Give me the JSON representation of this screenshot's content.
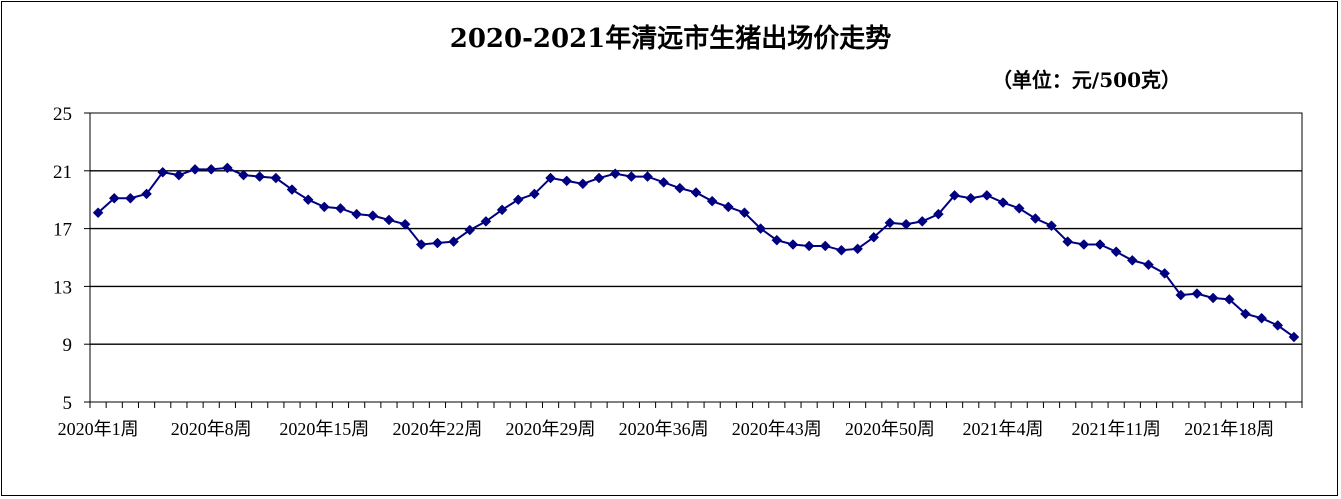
{
  "chart_data": {
    "type": "line",
    "title": "2020-2021年清远市生猪出场价走势",
    "unit_label": "（单位：元/500克）",
    "ylim": [
      5,
      25
    ],
    "yticks": [
      5,
      9,
      13,
      17,
      21,
      25
    ],
    "grid": "horizontal",
    "legend": "none",
    "series_color": "#000080",
    "marker": "diamond",
    "x_tick_labels": [
      "2020年1周",
      "2020年8周",
      "2020年15周",
      "2020年22周",
      "2020年29周",
      "2020年36周",
      "2020年43周",
      "2020年50周",
      "2021年4周",
      "2021年11周",
      "2021年18周"
    ],
    "x_tick_label_indices": [
      0,
      7,
      14,
      21,
      28,
      35,
      42,
      49,
      56,
      63,
      70
    ],
    "series": [
      {
        "values": [
          18.1,
          19.1,
          19.1,
          19.4,
          20.9,
          20.7,
          21.1,
          21.1,
          21.2,
          20.7,
          20.6,
          20.5,
          19.7,
          19.0,
          18.5,
          18.4,
          18.0,
          17.9,
          17.6,
          17.3,
          15.9,
          16.0,
          16.1,
          16.9,
          17.5,
          18.3,
          19.0,
          19.4,
          20.5,
          20.3,
          20.1,
          20.5,
          20.8,
          20.6,
          20.6,
          20.2,
          19.8,
          19.5,
          18.9,
          18.5,
          18.1,
          17.0,
          16.2,
          15.9,
          15.8,
          15.8,
          15.5,
          15.6,
          16.4,
          17.4,
          17.3,
          17.5,
          18.0,
          19.3,
          19.1,
          19.3,
          18.8,
          18.4,
          17.7,
          17.2,
          16.1,
          15.9,
          15.9,
          15.4,
          14.8,
          14.5,
          13.9,
          12.4,
          12.5,
          12.2,
          12.1,
          11.1,
          10.8,
          10.3,
          9.5
        ]
      }
    ]
  }
}
